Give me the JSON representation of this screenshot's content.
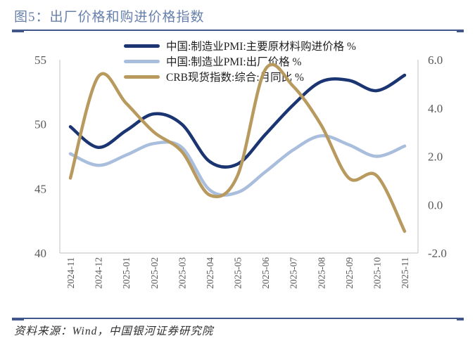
{
  "title": "图5：出厂价格和购进价格指数",
  "source": "资料来源：Wind，中国银河证券研究院",
  "colors": {
    "title_blue": "#6780ab",
    "divider_blue": "#41568b",
    "axis_gray": "#cbcbcb",
    "tick_text_gray": "#595959"
  },
  "chart_data": {
    "type": "line",
    "categories": [
      "2024-11",
      "2024-12",
      "2025-01",
      "2025-02",
      "2025-03",
      "2025-04",
      "2025-05",
      "2025-06",
      "2025-07",
      "2025-08",
      "2025-09",
      "2025-10",
      "2025-11"
    ],
    "series": [
      {
        "name": "中国:制造业PMI:主要原材料购进价格 %",
        "axis": "left",
        "color": "#1a3572",
        "values": [
          49.8,
          48.2,
          49.5,
          50.8,
          50.0,
          47.1,
          46.9,
          49.2,
          51.5,
          53.3,
          53.4,
          52.6,
          53.8
        ]
      },
      {
        "name": "中国:制造业PMI:出厂价格 %",
        "axis": "left",
        "color": "#a9bedd",
        "values": [
          47.7,
          46.8,
          47.6,
          48.5,
          48.2,
          44.9,
          44.7,
          46.3,
          48.0,
          49.1,
          48.4,
          47.5,
          48.3
        ]
      },
      {
        "name": "CRB现货指数:综合:月同比 %",
        "axis": "right",
        "color": "#b89a5f",
        "values": [
          1.1,
          5.3,
          4.2,
          3.0,
          2.2,
          0.4,
          1.2,
          5.6,
          4.9,
          3.3,
          1.1,
          1.2,
          -1.1
        ]
      }
    ],
    "left_axis": {
      "min": 40,
      "max": 55,
      "tick_labels": [
        "55",
        "50",
        "45",
        "40"
      ]
    },
    "right_axis": {
      "min": -2,
      "max": 6,
      "tick_labels": [
        "6.0",
        "4.0",
        "2.0",
        "0.0",
        "-2.0"
      ]
    },
    "legend_position": "top-center",
    "grid": "off"
  }
}
